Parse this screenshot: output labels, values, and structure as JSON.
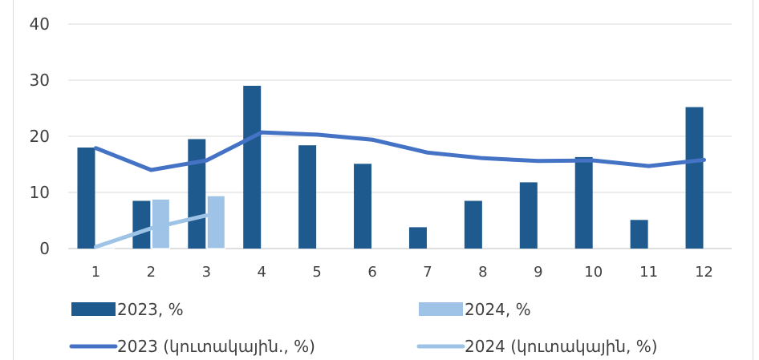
{
  "chart_data": {
    "type": "bar",
    "categories": [
      "1",
      "2",
      "3",
      "4",
      "5",
      "6",
      "7",
      "8",
      "9",
      "10",
      "11",
      "12"
    ],
    "y_ticks": [
      "0",
      "10",
      "20",
      "30",
      "40"
    ],
    "ylim": [
      0,
      40
    ],
    "grid": true,
    "legend_position": "bottom",
    "bar_series": [
      {
        "name": "2023, %",
        "color": "#1f5a8f",
        "values": [
          18,
          8.5,
          19.5,
          29,
          18.4,
          15.1,
          3.8,
          8.5,
          11.8,
          16.3,
          5.1,
          25.2
        ]
      },
      {
        "name": "2024, %",
        "color": "#9fc3e7",
        "values": [
          0.2,
          8.8,
          9.4,
          null,
          null,
          null,
          null,
          null,
          null,
          null,
          null,
          null
        ]
      }
    ],
    "line_series": [
      {
        "name": "2023 (կուտակային., %)",
        "color": "#4472c4",
        "values": [
          17.9,
          14,
          15.7,
          20.7,
          20.3,
          19.4,
          17.1,
          16.1,
          15.6,
          15.7,
          14.7,
          15.8
        ]
      },
      {
        "name": "2024 (կուտակային, %)",
        "color": "#9dc3e6",
        "values": [
          0.3,
          3.6,
          5.9,
          null,
          null,
          null,
          null,
          null,
          null,
          null,
          null,
          null
        ]
      }
    ]
  }
}
